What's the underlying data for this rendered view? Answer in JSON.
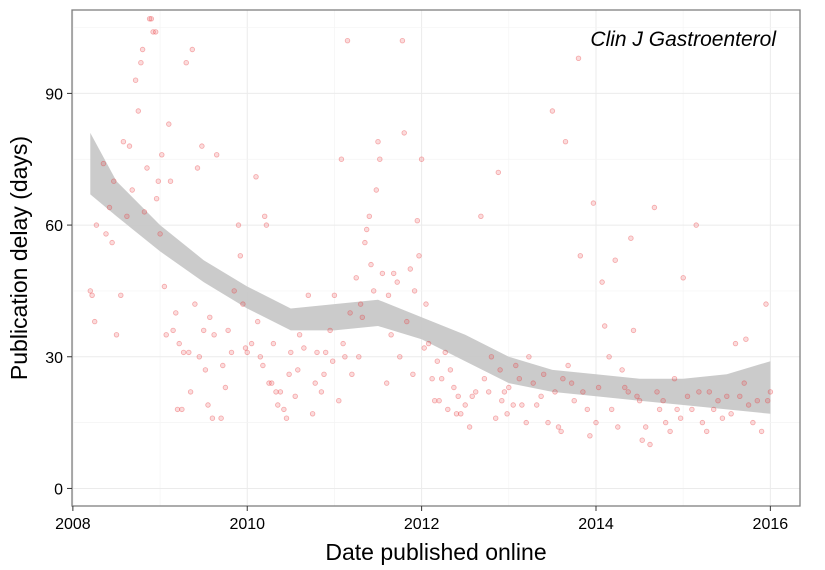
{
  "chart_data": {
    "type": "scatter",
    "title": "",
    "annotation": "Clin J Gastroenterol",
    "xlabel": "Date published online",
    "ylabel": "Publication delay (days)",
    "xlim": [
      2007.99,
      2016.34
    ],
    "ylim": [
      -4,
      109
    ],
    "xticks": [
      2008,
      2010,
      2012,
      2014,
      2016
    ],
    "yticks": [
      0,
      30,
      60,
      90
    ],
    "grid": true,
    "point_color": "#e8393d",
    "band_color": "#c8c8c8",
    "smooth": {
      "x": [
        2008.2,
        2008.5,
        2009.0,
        2009.5,
        2010.0,
        2010.5,
        2011.0,
        2011.5,
        2012.0,
        2012.5,
        2013.0,
        2013.5,
        2014.0,
        2014.5,
        2015.0,
        2015.5,
        2016.0
      ],
      "lower": [
        67,
        62,
        54,
        47,
        41,
        36,
        36,
        37,
        34,
        29,
        24,
        22,
        21,
        20,
        19,
        18,
        17
      ],
      "upper": [
        81,
        70,
        60,
        52,
        46,
        41,
        42,
        43,
        39,
        35,
        30,
        27,
        26,
        25,
        25,
        26,
        29
      ]
    },
    "points": [
      [
        2008.2,
        45
      ],
      [
        2008.22,
        44
      ],
      [
        2008.25,
        38
      ],
      [
        2008.27,
        60
      ],
      [
        2008.35,
        74
      ],
      [
        2008.38,
        58
      ],
      [
        2008.42,
        64
      ],
      [
        2008.45,
        56
      ],
      [
        2008.47,
        70
      ],
      [
        2008.5,
        35
      ],
      [
        2008.55,
        44
      ],
      [
        2008.58,
        79
      ],
      [
        2008.62,
        62
      ],
      [
        2008.65,
        78
      ],
      [
        2008.68,
        68
      ],
      [
        2008.72,
        93
      ],
      [
        2008.75,
        86
      ],
      [
        2008.78,
        97
      ],
      [
        2008.8,
        100
      ],
      [
        2008.82,
        63
      ],
      [
        2008.85,
        73
      ],
      [
        2008.88,
        107
      ],
      [
        2008.9,
        107
      ],
      [
        2008.92,
        104
      ],
      [
        2008.95,
        104
      ],
      [
        2008.96,
        66
      ],
      [
        2008.98,
        70
      ],
      [
        2009.0,
        58
      ],
      [
        2009.02,
        76
      ],
      [
        2009.05,
        46
      ],
      [
        2009.07,
        35
      ],
      [
        2009.1,
        83
      ],
      [
        2009.12,
        70
      ],
      [
        2009.15,
        36
      ],
      [
        2009.18,
        40
      ],
      [
        2009.2,
        18
      ],
      [
        2009.22,
        33
      ],
      [
        2009.25,
        18
      ],
      [
        2009.27,
        31
      ],
      [
        2009.3,
        97
      ],
      [
        2009.33,
        31
      ],
      [
        2009.35,
        22
      ],
      [
        2009.37,
        100
      ],
      [
        2009.4,
        42
      ],
      [
        2009.43,
        73
      ],
      [
        2009.45,
        30
      ],
      [
        2009.48,
        78
      ],
      [
        2009.5,
        36
      ],
      [
        2009.52,
        27
      ],
      [
        2009.55,
        19
      ],
      [
        2009.57,
        39
      ],
      [
        2009.6,
        16
      ],
      [
        2009.62,
        35
      ],
      [
        2009.65,
        76
      ],
      [
        2009.7,
        16
      ],
      [
        2009.72,
        28
      ],
      [
        2009.75,
        23
      ],
      [
        2009.78,
        36
      ],
      [
        2009.82,
        31
      ],
      [
        2009.85,
        45
      ],
      [
        2009.9,
        60
      ],
      [
        2009.92,
        53
      ],
      [
        2009.95,
        42
      ],
      [
        2009.98,
        32
      ],
      [
        2010.0,
        31
      ],
      [
        2010.05,
        33
      ],
      [
        2010.1,
        71
      ],
      [
        2010.12,
        38
      ],
      [
        2010.15,
        30
      ],
      [
        2010.18,
        28
      ],
      [
        2010.2,
        62
      ],
      [
        2010.22,
        60
      ],
      [
        2010.25,
        24
      ],
      [
        2010.28,
        24
      ],
      [
        2010.3,
        33
      ],
      [
        2010.33,
        22
      ],
      [
        2010.35,
        19
      ],
      [
        2010.38,
        22
      ],
      [
        2010.42,
        18
      ],
      [
        2010.45,
        16
      ],
      [
        2010.48,
        26
      ],
      [
        2010.5,
        31
      ],
      [
        2010.55,
        21
      ],
      [
        2010.58,
        27
      ],
      [
        2010.6,
        35
      ],
      [
        2010.65,
        32
      ],
      [
        2010.7,
        44
      ],
      [
        2010.75,
        17
      ],
      [
        2010.78,
        24
      ],
      [
        2010.8,
        31
      ],
      [
        2010.85,
        22
      ],
      [
        2010.88,
        26
      ],
      [
        2010.9,
        31
      ],
      [
        2010.95,
        36
      ],
      [
        2010.98,
        29
      ],
      [
        2011.0,
        44
      ],
      [
        2011.05,
        20
      ],
      [
        2011.08,
        75
      ],
      [
        2011.1,
        33
      ],
      [
        2011.12,
        30
      ],
      [
        2011.15,
        102
      ],
      [
        2011.18,
        40
      ],
      [
        2011.2,
        26
      ],
      [
        2011.25,
        48
      ],
      [
        2011.28,
        30
      ],
      [
        2011.3,
        42
      ],
      [
        2011.32,
        39
      ],
      [
        2011.35,
        56
      ],
      [
        2011.37,
        59
      ],
      [
        2011.4,
        62
      ],
      [
        2011.42,
        51
      ],
      [
        2011.45,
        45
      ],
      [
        2011.48,
        68
      ],
      [
        2011.5,
        79
      ],
      [
        2011.52,
        75
      ],
      [
        2011.55,
        49
      ],
      [
        2011.6,
        24
      ],
      [
        2011.62,
        44
      ],
      [
        2011.65,
        35
      ],
      [
        2011.68,
        49
      ],
      [
        2011.72,
        47
      ],
      [
        2011.75,
        30
      ],
      [
        2011.78,
        102
      ],
      [
        2011.8,
        81
      ],
      [
        2011.83,
        38
      ],
      [
        2011.87,
        50
      ],
      [
        2011.9,
        26
      ],
      [
        2011.92,
        45
      ],
      [
        2011.95,
        61
      ],
      [
        2011.97,
        53
      ],
      [
        2012.0,
        75
      ],
      [
        2012.03,
        32
      ],
      [
        2012.05,
        42
      ],
      [
        2012.08,
        33
      ],
      [
        2012.12,
        25
      ],
      [
        2012.15,
        20
      ],
      [
        2012.18,
        29
      ],
      [
        2012.2,
        20
      ],
      [
        2012.23,
        25
      ],
      [
        2012.27,
        31
      ],
      [
        2012.3,
        18
      ],
      [
        2012.33,
        27
      ],
      [
        2012.37,
        23
      ],
      [
        2012.4,
        17
      ],
      [
        2012.42,
        21
      ],
      [
        2012.45,
        17
      ],
      [
        2012.5,
        19
      ],
      [
        2012.55,
        14
      ],
      [
        2012.58,
        21
      ],
      [
        2012.62,
        22
      ],
      [
        2012.68,
        62
      ],
      [
        2012.72,
        25
      ],
      [
        2012.77,
        22
      ],
      [
        2012.8,
        30
      ],
      [
        2012.85,
        16
      ],
      [
        2012.88,
        72
      ],
      [
        2012.9,
        27
      ],
      [
        2012.92,
        20
      ],
      [
        2012.95,
        22
      ],
      [
        2012.98,
        17
      ],
      [
        2013.0,
        23
      ],
      [
        2013.05,
        19
      ],
      [
        2013.08,
        28
      ],
      [
        2013.12,
        25
      ],
      [
        2013.15,
        19
      ],
      [
        2013.2,
        15
      ],
      [
        2013.23,
        30
      ],
      [
        2013.28,
        24
      ],
      [
        2013.32,
        19
      ],
      [
        2013.37,
        21
      ],
      [
        2013.4,
        26
      ],
      [
        2013.45,
        15
      ],
      [
        2013.5,
        86
      ],
      [
        2013.53,
        22
      ],
      [
        2013.57,
        14
      ],
      [
        2013.6,
        13
      ],
      [
        2013.62,
        25
      ],
      [
        2013.65,
        79
      ],
      [
        2013.68,
        28
      ],
      [
        2013.72,
        24
      ],
      [
        2013.75,
        20
      ],
      [
        2013.8,
        98
      ],
      [
        2013.82,
        53
      ],
      [
        2013.85,
        22
      ],
      [
        2013.9,
        18
      ],
      [
        2013.93,
        12
      ],
      [
        2013.97,
        65
      ],
      [
        2014.0,
        15
      ],
      [
        2014.03,
        23
      ],
      [
        2014.07,
        47
      ],
      [
        2014.1,
        37
      ],
      [
        2014.15,
        30
      ],
      [
        2014.18,
        18
      ],
      [
        2014.22,
        52
      ],
      [
        2014.25,
        14
      ],
      [
        2014.3,
        27
      ],
      [
        2014.33,
        23
      ],
      [
        2014.37,
        22
      ],
      [
        2014.4,
        57
      ],
      [
        2014.43,
        36
      ],
      [
        2014.47,
        21
      ],
      [
        2014.5,
        20
      ],
      [
        2014.53,
        11
      ],
      [
        2014.57,
        14
      ],
      [
        2014.62,
        10
      ],
      [
        2014.67,
        64
      ],
      [
        2014.7,
        22
      ],
      [
        2014.73,
        18
      ],
      [
        2014.77,
        20
      ],
      [
        2014.8,
        15
      ],
      [
        2014.85,
        13
      ],
      [
        2014.9,
        25
      ],
      [
        2014.93,
        18
      ],
      [
        2014.97,
        16
      ],
      [
        2015.0,
        48
      ],
      [
        2015.05,
        21
      ],
      [
        2015.1,
        18
      ],
      [
        2015.15,
        60
      ],
      [
        2015.18,
        22
      ],
      [
        2015.22,
        15
      ],
      [
        2015.27,
        13
      ],
      [
        2015.3,
        22
      ],
      [
        2015.35,
        18
      ],
      [
        2015.4,
        20
      ],
      [
        2015.45,
        16
      ],
      [
        2015.5,
        21
      ],
      [
        2015.55,
        17
      ],
      [
        2015.6,
        33
      ],
      [
        2015.65,
        21
      ],
      [
        2015.7,
        24
      ],
      [
        2015.72,
        34
      ],
      [
        2015.75,
        19
      ],
      [
        2015.8,
        15
      ],
      [
        2015.85,
        20
      ],
      [
        2015.9,
        13
      ],
      [
        2015.95,
        42
      ],
      [
        2015.97,
        20
      ],
      [
        2016.0,
        22
      ]
    ]
  }
}
